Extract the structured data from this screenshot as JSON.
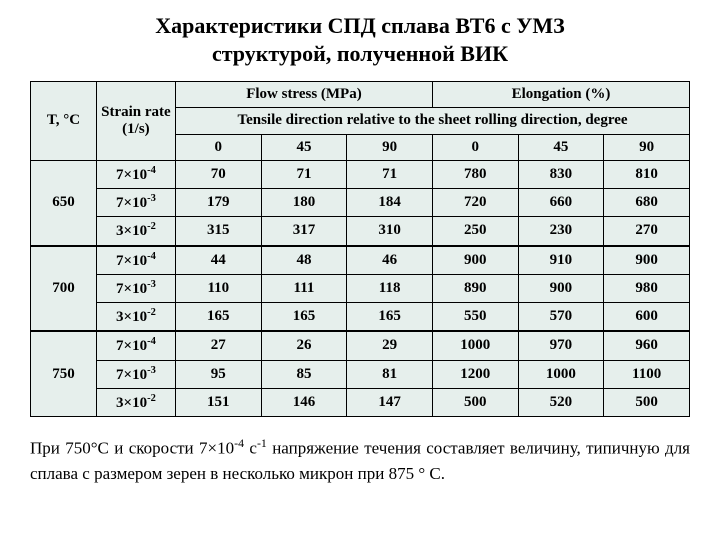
{
  "title_line1": "Характеристики СПД сплава ВТ6 с УМЗ",
  "title_line2": "структурой, полученной ВИК",
  "table": {
    "col_T": "T, °C",
    "col_rate": "Strain rate (1/s)",
    "col_flow": "Flow stress (MPa)",
    "col_elong": "Elongation (%)",
    "col_tensile": "Tensile direction relative to the sheet rolling direction, degree",
    "deg0a": "0",
    "deg45a": "45",
    "deg90a": "90",
    "deg0b": "0",
    "deg45b": "45",
    "deg90b": "90",
    "temps": [
      "650",
      "700",
      "750"
    ],
    "rates": [
      "7×10",
      "7×10",
      "3×10"
    ],
    "rate_exps": [
      "-4",
      "-3",
      "-2"
    ],
    "rows": [
      [
        "70",
        "71",
        "71",
        "780",
        "830",
        "810"
      ],
      [
        "179",
        "180",
        "184",
        "720",
        "660",
        "680"
      ],
      [
        "315",
        "317",
        "310",
        "250",
        "230",
        "270"
      ],
      [
        "44",
        "48",
        "46",
        "900",
        "910",
        "900"
      ],
      [
        "110",
        "111",
        "118",
        "890",
        "900",
        "980"
      ],
      [
        "165",
        "165",
        "165",
        "550",
        "570",
        "600"
      ],
      [
        "27",
        "26",
        "29",
        "1000",
        "970",
        "960"
      ],
      [
        "95",
        "85",
        "81",
        "1200",
        "1000",
        "1100"
      ],
      [
        "151",
        "146",
        "147",
        "500",
        "520",
        "500"
      ]
    ]
  },
  "footnote_parts": {
    "p1": "При  750°С  и  скорости  7×10",
    "exp1": "-4",
    "p2": "  с",
    "exp2": "-1",
    "p3": "  напряжение  течения  составляет  величину, типичную для сплава с размером зерен в несколько микрон при 875 ° С."
  }
}
